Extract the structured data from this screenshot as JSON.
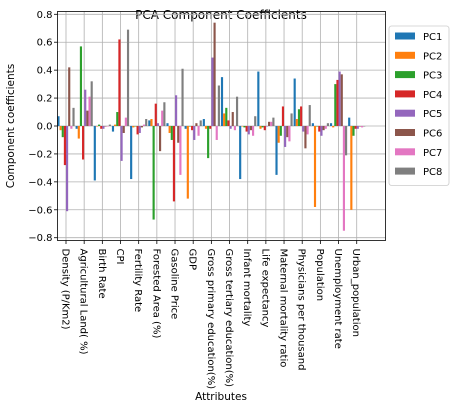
{
  "chart_data": {
    "type": "bar",
    "title": "PCA Component Coefficients",
    "xlabel": "Attributes",
    "ylabel": "Component coefficients",
    "ylim": [
      -0.82,
      0.82
    ],
    "yticks": [
      -0.8,
      -0.6,
      -0.4,
      -0.2,
      0.0,
      0.2,
      0.4,
      0.6,
      0.8
    ],
    "ytick_labels": [
      "−0.8",
      "−0.6",
      "−0.4",
      "−0.2",
      "0.0",
      "0.2",
      "0.4",
      "0.6",
      "0.8"
    ],
    "grid": true,
    "legend_position": "outside-top-right",
    "categories": [
      "Density (P/Km2)",
      "Agricultural Land( %)",
      "Birth Rate",
      "CPI",
      "Fertility Rate",
      "Forested Area (%)",
      "Gasoline Price",
      "GDP",
      "Gross primary education(%)",
      "Gross tertiary education(%)",
      "Infant mortality",
      "Life expectancy",
      "Maternal mortality ratio",
      "Physicians per thousand",
      "Population",
      "Unemployment rate",
      "Urban_population"
    ],
    "series": [
      {
        "name": "PC1",
        "color": "#1f77b4",
        "values": [
          0.07,
          -0.02,
          -0.39,
          -0.04,
          -0.38,
          0.04,
          0.02,
          -0.02,
          0.05,
          0.35,
          -0.38,
          0.39,
          -0.35,
          0.34,
          0.02,
          0.02,
          0.06
        ]
      },
      {
        "name": "PC2",
        "color": "#ff7f0e",
        "values": [
          -0.03,
          -0.09,
          0.0,
          0.01,
          -0.01,
          0.05,
          -0.05,
          -0.52,
          -0.02,
          0.09,
          0.0,
          -0.02,
          -0.12,
          0.05,
          -0.58,
          -0.01,
          -0.6
        ]
      },
      {
        "name": "PC3",
        "color": "#2ca02c",
        "values": [
          -0.08,
          0.57,
          0.01,
          0.1,
          0.0,
          -0.67,
          -0.1,
          0.0,
          -0.23,
          0.13,
          -0.01,
          -0.01,
          -0.07,
          0.12,
          0.0,
          0.3,
          -0.07
        ]
      },
      {
        "name": "PC4",
        "color": "#d62728",
        "values": [
          -0.28,
          -0.24,
          -0.02,
          0.62,
          -0.06,
          0.16,
          -0.54,
          -0.03,
          -0.02,
          0.04,
          -0.04,
          -0.03,
          0.14,
          0.14,
          -0.04,
          0.33,
          -0.02
        ]
      },
      {
        "name": "PC5",
        "color": "#9467bd",
        "values": [
          -0.61,
          0.26,
          -0.02,
          -0.25,
          -0.05,
          0.02,
          0.22,
          -0.1,
          0.49,
          -0.02,
          -0.06,
          0.0,
          -0.15,
          -0.04,
          -0.07,
          0.39,
          -0.02
        ]
      },
      {
        "name": "PC6",
        "color": "#8c564b",
        "values": [
          0.42,
          0.11,
          0.0,
          -0.05,
          -0.01,
          -0.18,
          -0.12,
          0.02,
          0.74,
          0.1,
          -0.03,
          0.03,
          -0.08,
          -0.16,
          -0.03,
          0.37,
          0.0
        ]
      },
      {
        "name": "PC7",
        "color": "#e377c2",
        "values": [
          -0.02,
          0.21,
          0.0,
          0.06,
          0.01,
          0.11,
          -0.35,
          -0.07,
          -0.1,
          -0.03,
          -0.07,
          0.03,
          -0.11,
          -0.06,
          -0.02,
          -0.75,
          -0.01
        ]
      },
      {
        "name": "PC8",
        "color": "#7f7f7f",
        "values": [
          0.13,
          0.32,
          0.01,
          0.69,
          0.05,
          0.17,
          0.41,
          0.04,
          0.29,
          0.21,
          0.07,
          0.06,
          0.09,
          0.15,
          0.02,
          -0.21,
          0.0
        ]
      }
    ]
  }
}
